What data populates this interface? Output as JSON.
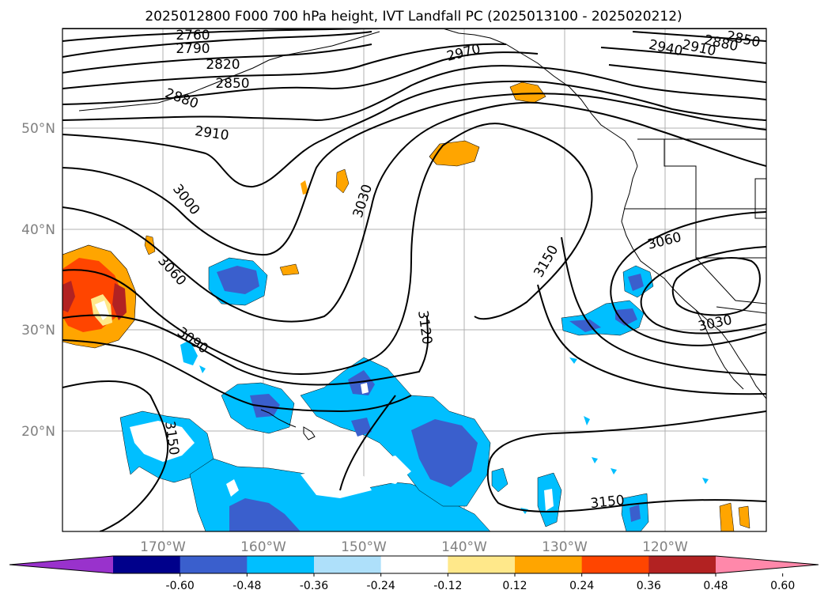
{
  "title": "2025012800 F000 700 hPa height, IVT Landfall PC (2025013100 - 2025020212)",
  "map": {
    "lat_labels": [
      "50°N",
      "40°N",
      "30°N",
      "20°N"
    ],
    "lon_labels": [
      "170°W",
      "160°W",
      "150°W",
      "140°W",
      "130°W",
      "120°W"
    ]
  },
  "contour_labels": {
    "c2760": "2760",
    "c2790": "2790",
    "c2820": "2820",
    "c2850": "2850",
    "c2880": "2880",
    "c2910": "2910",
    "c2940": "2940",
    "c2970": "2970",
    "c3000": "3000",
    "c3030": "3030",
    "c3060a": "3060",
    "c3060b": "3060",
    "c3090": "3090",
    "c3120": "3120",
    "c3150a": "3150",
    "c3150b": "3150",
    "c3150c": "3150",
    "c3030b": "3030",
    "ne1": "2910",
    "ne2": "2880",
    "ne3": "2850",
    "n2940": "2940"
  },
  "colorbar": {
    "ticks": [
      "-0.60",
      "-0.48",
      "-0.36",
      "-0.24",
      "-0.12",
      "0.12",
      "0.24",
      "0.36",
      "0.48",
      "0.60"
    ],
    "colors": [
      "#9932cc",
      "#00008b",
      "#3a5fcd",
      "#00bfff",
      "#aee0fa",
      "#ffffff",
      "#ffe88a",
      "#ffa500",
      "#ff4500",
      "#b22222",
      "#ff88aa"
    ]
  }
}
